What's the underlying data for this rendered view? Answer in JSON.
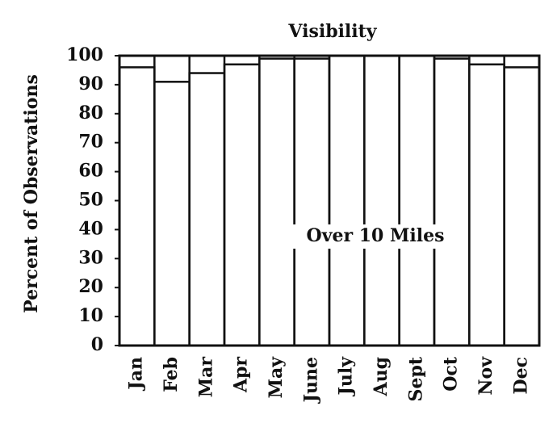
{
  "chart_data": {
    "type": "bar",
    "stacked": true,
    "title": "Visibility",
    "ylabel": "Percent of Observations",
    "annotation": "Over 10 Miles",
    "categories": [
      "Jan",
      "Feb",
      "Mar",
      "Apr",
      "May",
      "June",
      "July",
      "Aug",
      "Sept",
      "Oct",
      "Nov",
      "Dec"
    ],
    "values": [
      96,
      91,
      94,
      97,
      99,
      99,
      100,
      100,
      100,
      99,
      97,
      96
    ],
    "color": "#ffffff",
    "ylim": [
      0,
      100
    ],
    "yticks": [
      0,
      10,
      20,
      30,
      40,
      50,
      60,
      70,
      80,
      90,
      100
    ],
    "grid": false
  }
}
